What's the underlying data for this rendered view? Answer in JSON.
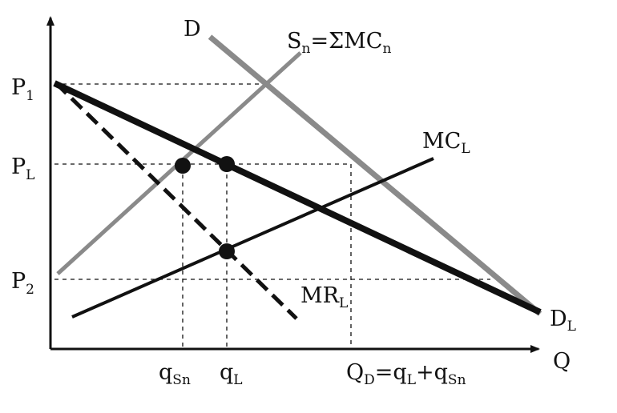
{
  "axes": {
    "price_axis": "",
    "quantity_axis": "Q"
  },
  "price_levels": {
    "p1": {
      "base": "P",
      "sub": "1"
    },
    "pl": {
      "base": "P",
      "sub": "L"
    },
    "p2": {
      "base": "P",
      "sub": "2"
    }
  },
  "quantity_levels": {
    "qsn": {
      "base": "q",
      "sub": "Sn"
    },
    "ql": {
      "base": "q",
      "sub": "L"
    },
    "qd": {
      "base": "Q",
      "sub": "D",
      "rest_1": "=q",
      "sub_2": "L",
      "rest_2": "+q",
      "sub_3": "Sn"
    }
  },
  "curves": {
    "market_demand": {
      "label": "D"
    },
    "fringe_supply": {
      "base": "S",
      "sub": "n",
      "rest": "=ΣMC",
      "sub_2": "n"
    },
    "leader_mc": {
      "base": "MC",
      "sub": "L"
    },
    "leader_mr": {
      "base": "MR",
      "sub": "L"
    },
    "residual_demand": {
      "base": "D",
      "sub": "L"
    }
  },
  "colors": {
    "ink": "#111111",
    "gray_line": "#8a8a8a",
    "background": "#ffffff"
  }
}
